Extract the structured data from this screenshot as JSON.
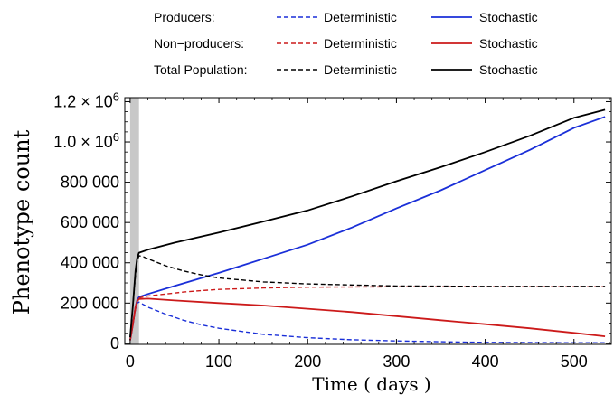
{
  "chart_data": {
    "type": "line",
    "title": "",
    "xlabel": "Time   ( days )",
    "ylabel": "Phenotype count",
    "xlim": [
      -6,
      542
    ],
    "ylim": [
      -5000,
      1220000
    ],
    "x_ticks": [
      0,
      100,
      200,
      300,
      400,
      500
    ],
    "x_tick_labels": [
      "0",
      "100",
      "200",
      "300",
      "400",
      "500"
    ],
    "y_ticks": [
      0,
      200000,
      400000,
      600000,
      800000,
      1000000,
      1200000
    ],
    "y_tick_labels": [
      {
        "value": 0,
        "text": "0",
        "sup": ""
      },
      {
        "value": 200000,
        "text": "200 000",
        "sup": ""
      },
      {
        "value": 400000,
        "text": "400 000",
        "sup": ""
      },
      {
        "value": 600000,
        "text": "600 000",
        "sup": ""
      },
      {
        "value": 800000,
        "text": "800 000",
        "sup": ""
      },
      {
        "value": 1000000,
        "text": "1.0 × 10",
        "sup": "6"
      },
      {
        "value": 1200000,
        "text": "1.2 × 10",
        "sup": "6"
      }
    ],
    "shaded_interval": {
      "x": [
        0,
        10
      ],
      "color": "#c8c8c8"
    },
    "grid": false,
    "legend": {
      "placement": "top",
      "rows": [
        {
          "group": "Producers:",
          "deterministic": "Deterministic",
          "stochastic": "Stochastic",
          "color": "#1a2fd8"
        },
        {
          "group": "Non−producers:",
          "deterministic": "Deterministic",
          "stochastic": "Stochastic",
          "color": "#cc1a1a"
        },
        {
          "group": "Total Population:",
          "deterministic": "Deterministic",
          "stochastic": "Stochastic",
          "color": "#000000"
        }
      ]
    },
    "series": [
      {
        "name": "Producers: Deterministic",
        "color": "#1a2fd8",
        "style": "dashed",
        "x": [
          0,
          3,
          6,
          8,
          10,
          20,
          40,
          60,
          80,
          100,
          150,
          200,
          250,
          300,
          350,
          400,
          450,
          500,
          535
        ],
        "y": [
          15000,
          90000,
          170000,
          200000,
          205000,
          180000,
          145000,
          115000,
          92000,
          75000,
          45000,
          28000,
          18000,
          12000,
          8000,
          5000,
          4000,
          3000,
          3000
        ]
      },
      {
        "name": "Producers: Stochastic",
        "color": "#1a2fd8",
        "style": "solid",
        "x": [
          0,
          3,
          6,
          8,
          10,
          20,
          50,
          100,
          150,
          200,
          250,
          300,
          350,
          400,
          450,
          500,
          535
        ],
        "y": [
          15000,
          90000,
          180000,
          215000,
          230000,
          245000,
          285000,
          350000,
          420000,
          490000,
          575000,
          670000,
          760000,
          860000,
          960000,
          1070000,
          1125000
        ]
      },
      {
        "name": "Non-producers: Deterministic",
        "color": "#cc1a1a",
        "style": "dashed",
        "x": [
          0,
          3,
          6,
          8,
          10,
          20,
          40,
          60,
          80,
          100,
          150,
          200,
          250,
          300,
          400,
          535
        ],
        "y": [
          15000,
          90000,
          170000,
          210000,
          225000,
          235000,
          245000,
          255000,
          262000,
          268000,
          275000,
          279000,
          280000,
          281000,
          281000,
          281000
        ]
      },
      {
        "name": "Non-producers: Stochastic",
        "color": "#cc1a1a",
        "style": "solid",
        "x": [
          0,
          3,
          6,
          8,
          10,
          20,
          50,
          100,
          150,
          200,
          250,
          300,
          350,
          400,
          450,
          500,
          535
        ],
        "y": [
          15000,
          90000,
          180000,
          210000,
          220000,
          222000,
          213000,
          200000,
          188000,
          172000,
          155000,
          135000,
          115000,
          95000,
          75000,
          52000,
          35000
        ]
      },
      {
        "name": "Total Population: Deterministic",
        "color": "#000000",
        "style": "dashed",
        "x": [
          0,
          3,
          6,
          8,
          10,
          15,
          20,
          40,
          60,
          80,
          100,
          150,
          200,
          250,
          300,
          400,
          535
        ],
        "y": [
          30000,
          180000,
          340000,
          410000,
          435000,
          430000,
          420000,
          385000,
          360000,
          340000,
          325000,
          305000,
          295000,
          290000,
          285000,
          283000,
          283000
        ]
      },
      {
        "name": "Total Population: Stochastic",
        "color": "#000000",
        "style": "solid",
        "x": [
          0,
          3,
          6,
          8,
          10,
          20,
          50,
          100,
          150,
          200,
          250,
          300,
          350,
          400,
          450,
          500,
          535
        ],
        "y": [
          30000,
          180000,
          360000,
          425000,
          450000,
          465000,
          500000,
          550000,
          605000,
          660000,
          730000,
          805000,
          875000,
          950000,
          1030000,
          1120000,
          1160000
        ]
      }
    ]
  }
}
